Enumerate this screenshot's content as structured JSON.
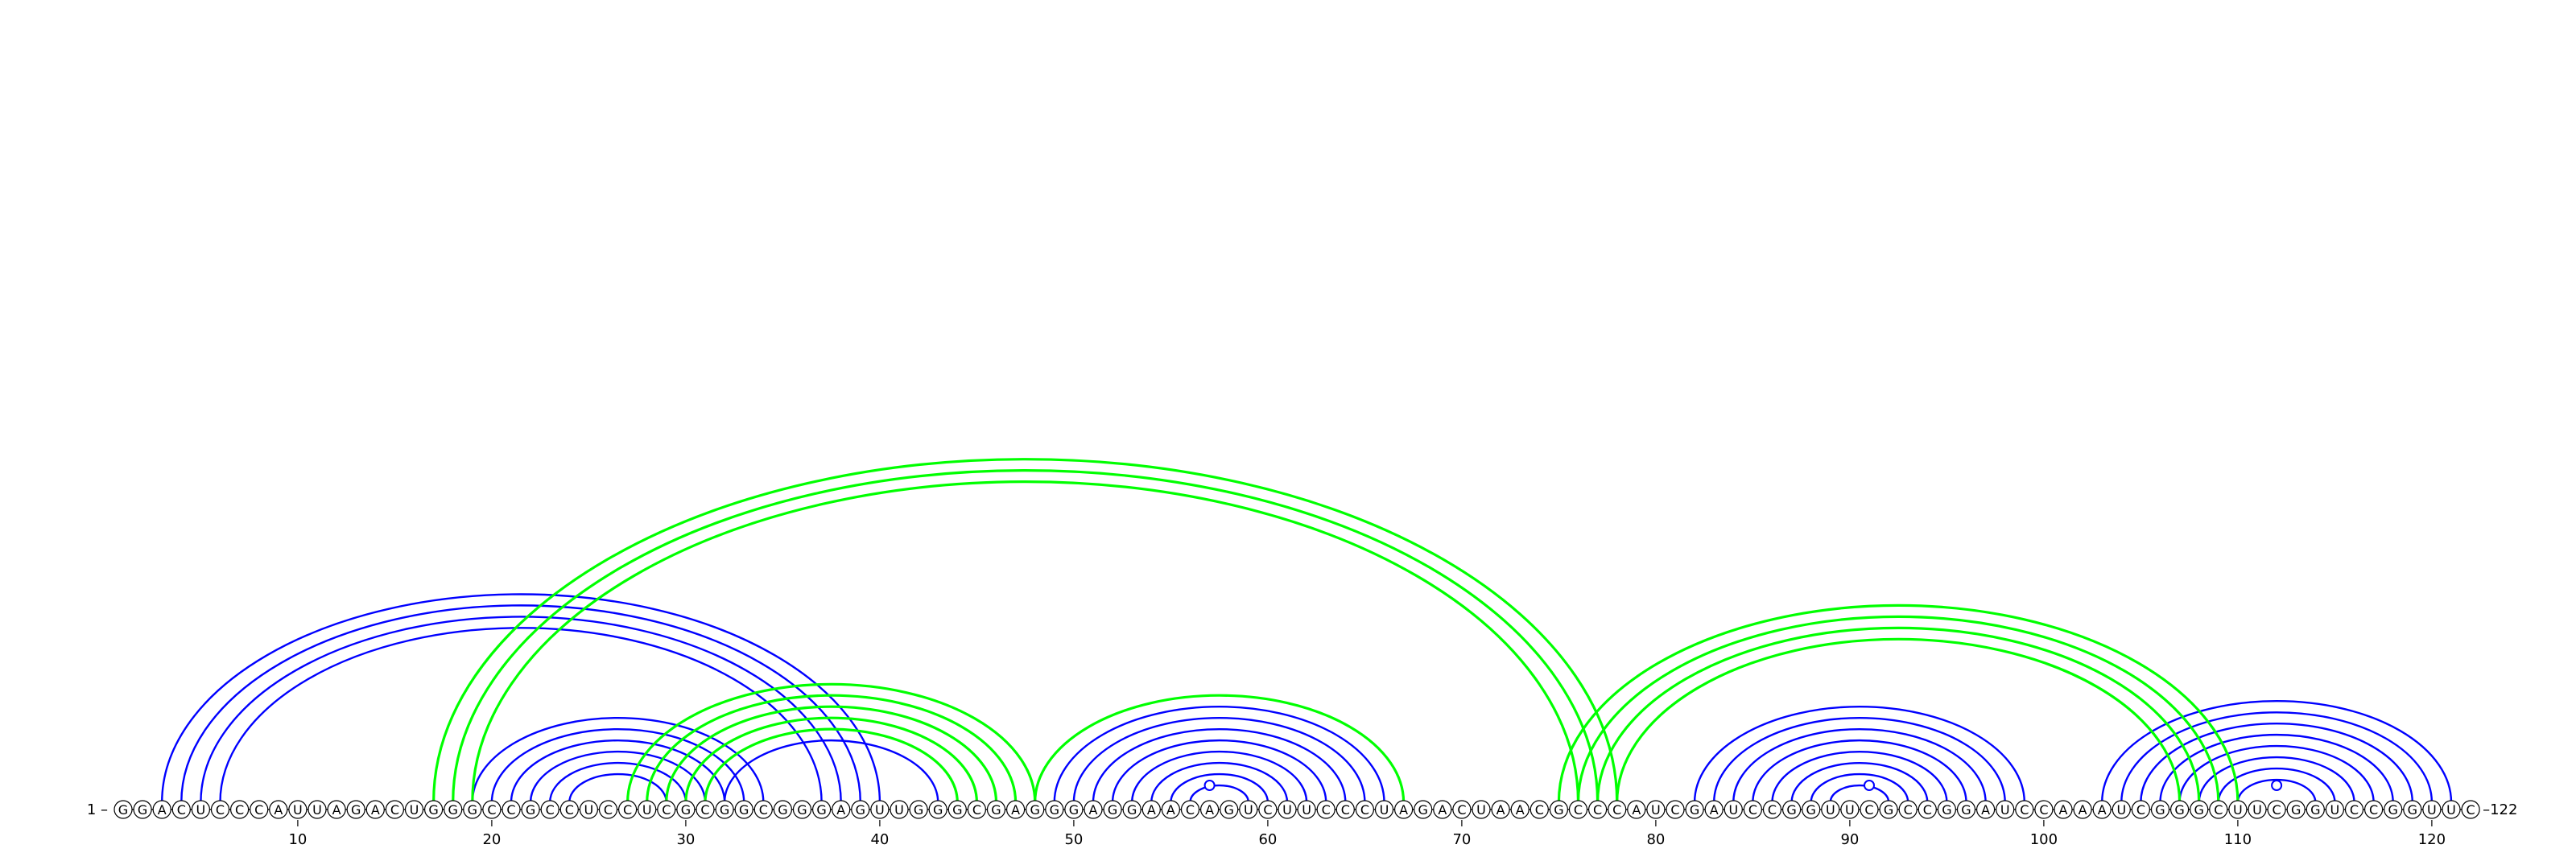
{
  "diagram": {
    "sequence": "GGACUCCCAUUAGACUGGGCCGCCUCCUCGCGGCGGGAGUUGGGCGAGGGAGGAACAGUCUUCCCUAGACUAACGCCCAUCGAUCCGGUUCGCCGGAUCCAAAUCGGGCUUCGGUCCGGUUC",
    "start_label": "1",
    "end_label": "122",
    "ticks": [
      "10",
      "20",
      "30",
      "40",
      "50",
      "60",
      "70",
      "80",
      "90",
      "100",
      "110",
      "120"
    ],
    "colors": {
      "blue_arcs": "#0000ff",
      "green_arcs": "#00ff00",
      "nucleotide_fill": "#ffffff",
      "nucleotide_stroke": "#000000",
      "loop_marker": "#0000ff"
    },
    "helices": [
      {
        "color": "blue",
        "pairs": [
          [
            3,
            40
          ],
          [
            4,
            39
          ],
          [
            5,
            38
          ],
          [
            6,
            37
          ]
        ]
      },
      {
        "color": "blue",
        "pairs": [
          [
            19,
            34
          ],
          [
            20,
            33
          ],
          [
            21,
            32
          ],
          [
            22,
            31
          ],
          [
            23,
            30
          ],
          [
            24,
            29
          ]
        ]
      },
      {
        "color": "blue",
        "pairs": [
          [
            28,
            47
          ],
          [
            29,
            46
          ],
          [
            30,
            45
          ],
          [
            31,
            44
          ],
          [
            32,
            43
          ]
        ]
      },
      {
        "color": "blue",
        "pairs": [
          [
            49,
            66
          ],
          [
            50,
            65
          ],
          [
            51,
            64
          ],
          [
            52,
            63
          ],
          [
            53,
            62
          ],
          [
            54,
            61
          ],
          [
            55,
            60
          ],
          [
            56,
            59
          ]
        ]
      },
      {
        "color": "blue",
        "pairs": [
          [
            82,
            99
          ],
          [
            83,
            98
          ],
          [
            84,
            97
          ],
          [
            85,
            96
          ],
          [
            86,
            95
          ],
          [
            87,
            94
          ],
          [
            88,
            93
          ],
          [
            89,
            92
          ]
        ]
      },
      {
        "color": "blue",
        "pairs": [
          [
            103,
            121
          ],
          [
            104,
            120
          ],
          [
            105,
            119
          ],
          [
            106,
            118
          ],
          [
            107,
            117
          ],
          [
            108,
            116
          ],
          [
            109,
            115
          ],
          [
            110,
            114
          ]
        ]
      },
      {
        "color": "green",
        "pairs": [
          [
            17,
            78
          ],
          [
            18,
            77
          ],
          [
            19,
            76
          ]
        ]
      },
      {
        "color": "green",
        "pairs": [
          [
            27,
            48
          ],
          [
            28,
            47
          ],
          [
            29,
            46
          ]
        ]
      },
      {
        "color": "green",
        "pairs": [
          [
            30,
            45
          ],
          [
            31,
            44
          ]
        ]
      },
      {
        "color": "green",
        "pairs": [
          [
            75,
            110
          ],
          [
            76,
            109
          ],
          [
            77,
            108
          ],
          [
            78,
            107
          ]
        ]
      },
      {
        "color": "green",
        "pairs": [
          [
            48,
            67
          ]
        ]
      }
    ],
    "loop_markers": [
      57,
      91,
      112
    ]
  }
}
